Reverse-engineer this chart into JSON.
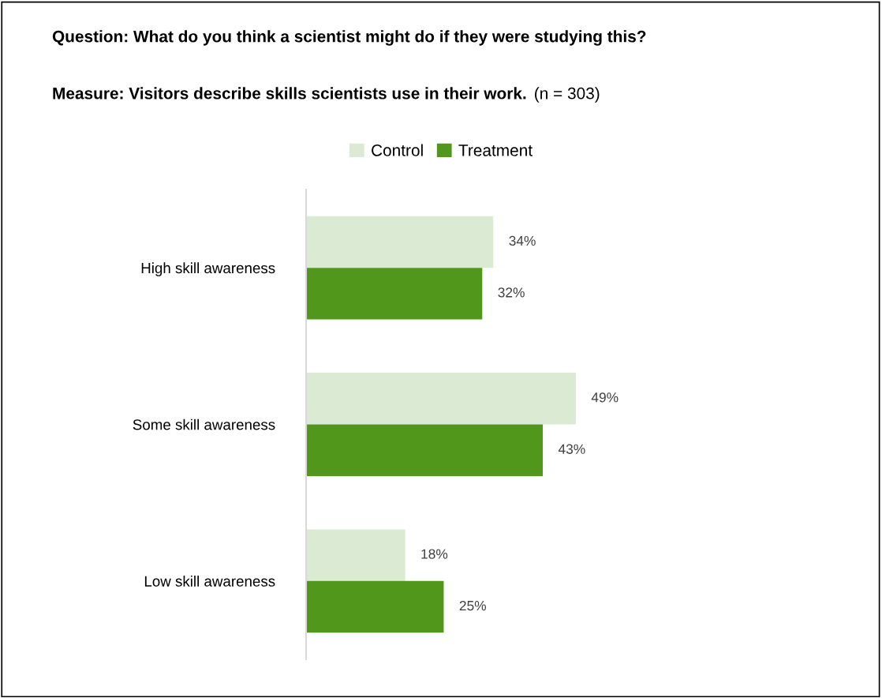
{
  "chart_data": {
    "type": "bar",
    "orientation": "horizontal",
    "title": "Question: What do you think a scientist might do if they were studying this?",
    "subtitle": "Measure: Visitors describe skills scientists use in their work.",
    "annotations": [
      "(n = 303)"
    ],
    "categories": [
      "High skill awareness",
      "Some skill awareness",
      "Low skill awareness"
    ],
    "series": [
      {
        "name": "Control",
        "color": "#dbead3",
        "values": [
          34,
          49,
          18
        ],
        "value_labels": [
          "34%",
          "49%",
          "18%"
        ]
      },
      {
        "name": "Treatment",
        "color": "#50971c",
        "values": [
          32,
          43,
          25
        ],
        "value_labels": [
          "32%",
          "43%",
          "25%"
        ]
      }
    ],
    "legend": "top",
    "grid": false
  }
}
